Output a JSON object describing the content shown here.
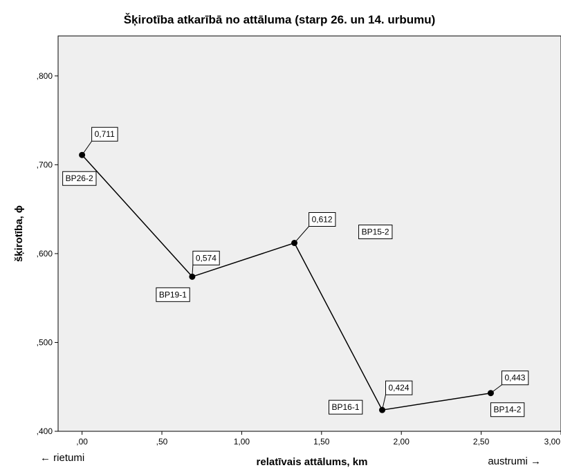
{
  "chart_data": {
    "type": "line",
    "title": "Šķirotība atkarībā no attāluma (starp 26. un 14. urbumu)",
    "xlabel": "relatīvais attālums, km",
    "ylabel": "šķirotība, ϕ",
    "xlim": [
      -0.15,
      3.0
    ],
    "ylim": [
      0.4,
      0.845
    ],
    "x_ticks": [
      ",00",
      ",50",
      "1,00",
      "1,50",
      "2,00",
      "2,50",
      "3,00"
    ],
    "y_ticks": [
      ",400",
      ",500",
      ",600",
      ",700",
      ",800"
    ],
    "x_direction_left": "← rietumi",
    "x_direction_right": "austrumi →",
    "grid": false,
    "legend": "none",
    "colors": {
      "plot_background": "#efefef",
      "line": "#000000"
    },
    "points": [
      {
        "name": "BP26-2",
        "x": 0.0,
        "y": 0.711,
        "label": "0,711"
      },
      {
        "name": "BP19-1",
        "x": 0.69,
        "y": 0.574,
        "label": "0,574"
      },
      {
        "name": "BP15-2",
        "x": 1.33,
        "y": 0.612,
        "label": "0,612"
      },
      {
        "name": "BP16-1",
        "x": 1.88,
        "y": 0.424,
        "label": "0,424"
      },
      {
        "name": "BP14-2",
        "x": 2.56,
        "y": 0.443,
        "label": "0,443"
      }
    ]
  }
}
